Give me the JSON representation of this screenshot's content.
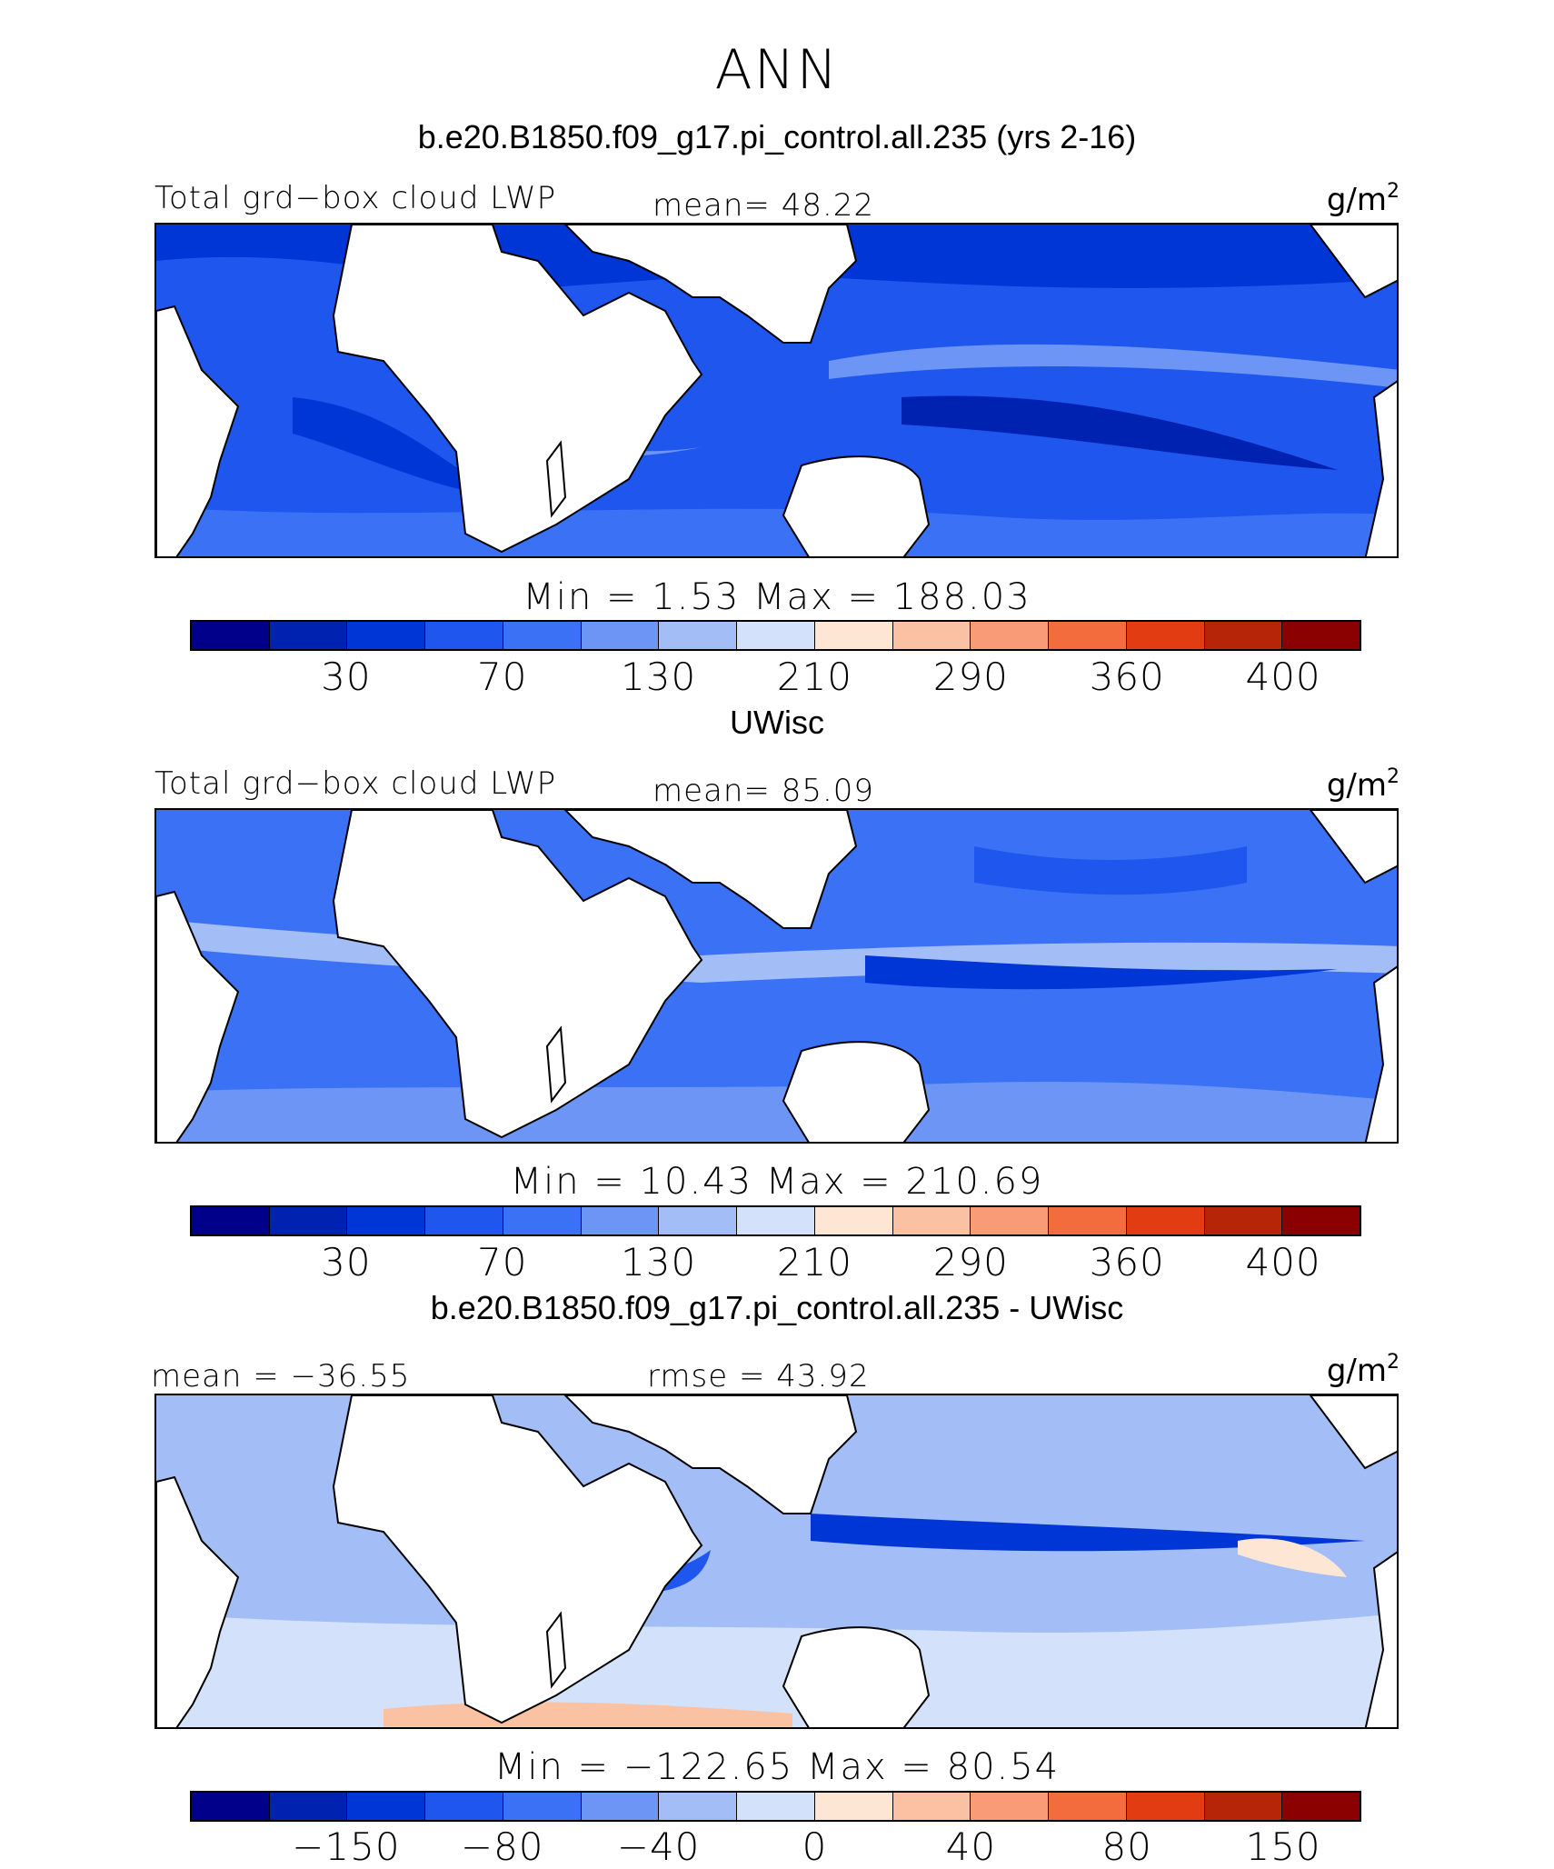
{
  "figure": {
    "title": "ANN"
  },
  "colors": {
    "scale": [
      "#00008b",
      "#0022b0",
      "#0036d6",
      "#1e56ee",
      "#3b72f5",
      "#6c95f5",
      "#a3bdf7",
      "#d3e2fa",
      "#fde6d3",
      "#fbc1a3",
      "#f89b76",
      "#f26c3e",
      "#e23d12",
      "#b62508",
      "#8b0000"
    ],
    "land": "#ffffff",
    "coast": "#000000"
  },
  "panels": [
    {
      "case_title": "b.e20.B1850.f09_g17.pi_control.all.235 (yrs 2-16)",
      "left_label": "Total grd−box cloud LWP",
      "center_label": "mean=  48.22",
      "units": "g/m",
      "units_sup": "2",
      "minmax": "Min =    1.53 Max = 188.03",
      "ticks": [
        "30",
        "70",
        "130",
        "210",
        "290",
        "360",
        "400"
      ],
      "ocean_tone": "#1e56ee"
    },
    {
      "case_title": "UWisc",
      "left_label": "Total grd−box cloud LWP",
      "center_label": "mean=  85.09",
      "units": "g/m",
      "units_sup": "2",
      "minmax": "Min =  10.43 Max = 210.69",
      "ticks": [
        "30",
        "70",
        "130",
        "210",
        "290",
        "360",
        "400"
      ],
      "ocean_tone": "#3b72f5"
    },
    {
      "case_title": "b.e20.B1850.f09_g17.pi_control.all.235 - UWisc",
      "left_label": "mean = −36.55",
      "center_label": "rmse =  43.92",
      "units": "g/m",
      "units_sup": "2",
      "minmax": "Min = −122.65 Max =   80.54",
      "ticks": [
        "−150",
        "−80",
        "−40",
        "0",
        "40",
        "80",
        "150"
      ],
      "ocean_tone": "#a3bdf7"
    }
  ]
}
